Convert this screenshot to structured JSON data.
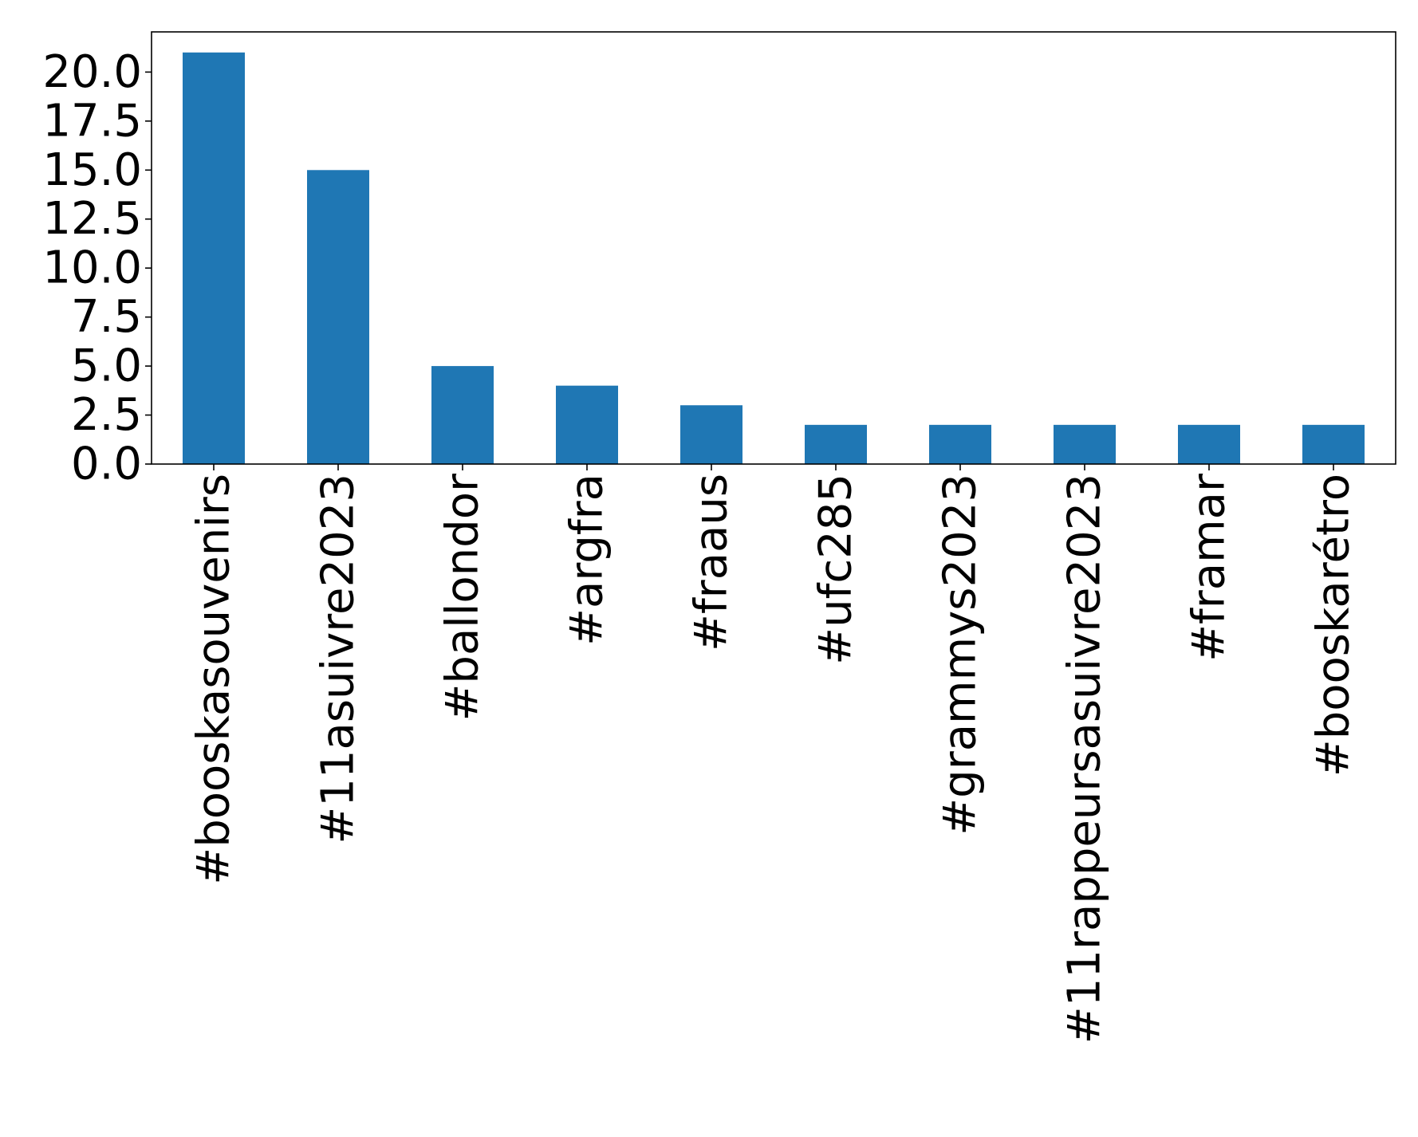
{
  "chart_data": {
    "type": "bar",
    "categories": [
      "#booskasouvenirs",
      "#11asuivre2023",
      "#ballondor",
      "#argfra",
      "#fraaus",
      "#ufc285",
      "#grammys2023",
      "#11rappeursasuivre2023",
      "#framar",
      "#booskarétro"
    ],
    "values": [
      21,
      15,
      5,
      4,
      3,
      2,
      2,
      2,
      2,
      2
    ],
    "title": "",
    "xlabel": "",
    "ylabel": "",
    "ylim": [
      0,
      22.05
    ],
    "yticks": [
      "0.0",
      "2.5",
      "5.0",
      "7.5",
      "10.0",
      "12.5",
      "15.0",
      "17.5",
      "20.0"
    ],
    "bar_color": "#1f77b4",
    "grid": false,
    "legend": "none",
    "x_tick_rotation": "vertical"
  }
}
